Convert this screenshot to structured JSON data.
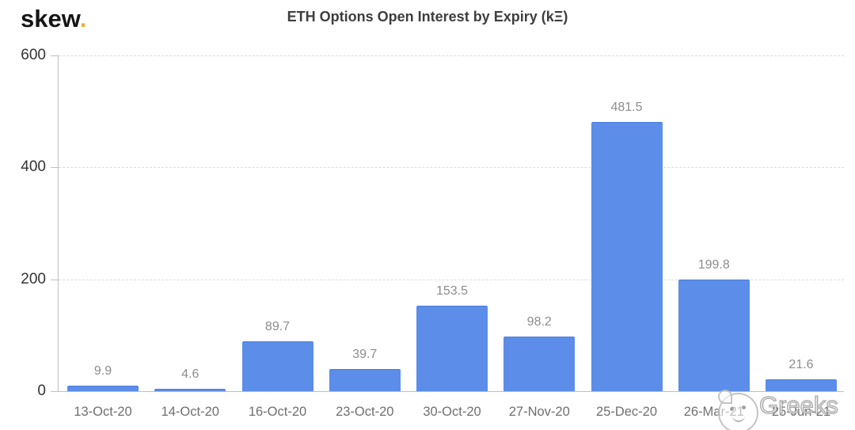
{
  "logo": {
    "text": "skew",
    "dot": "."
  },
  "header": {
    "title": "ETH Options Open Interest by Expiry (kΞ)"
  },
  "watermark": {
    "icon": "wechat-doge-face-icon",
    "text": "Greeks"
  },
  "colors": {
    "bar": "#5B8DE9",
    "bar_border": "#4C7FD9",
    "axis": "#BFBFBF",
    "gridline": "#DCDCDC",
    "ytick_label": "#333333",
    "xtick_label": "#6F6F6F",
    "value_label": "#8C8C8C",
    "title": "#3E3E3E",
    "logo_text": "#151515",
    "logo_dot": "#E9B23B"
  },
  "chart_data": {
    "type": "bar",
    "title": "ETH Options Open Interest by Expiry (kΞ)",
    "categories": [
      "13-Oct-20",
      "14-Oct-20",
      "16-Oct-20",
      "23-Oct-20",
      "30-Oct-20",
      "27-Nov-20",
      "25-Dec-20",
      "26-Mar-21",
      "25-Jun-21"
    ],
    "values": [
      9.9,
      4.6,
      89.7,
      39.7,
      153.5,
      98.2,
      481.5,
      199.8,
      21.6
    ],
    "xlabel": "",
    "ylabel": "",
    "ylim": [
      0,
      600
    ],
    "yticks": [
      0,
      200,
      400,
      600
    ],
    "grid": "horizontal-dashed",
    "legend": "none",
    "bar_color": "#5B8DE9",
    "value_labels_shown": true
  }
}
